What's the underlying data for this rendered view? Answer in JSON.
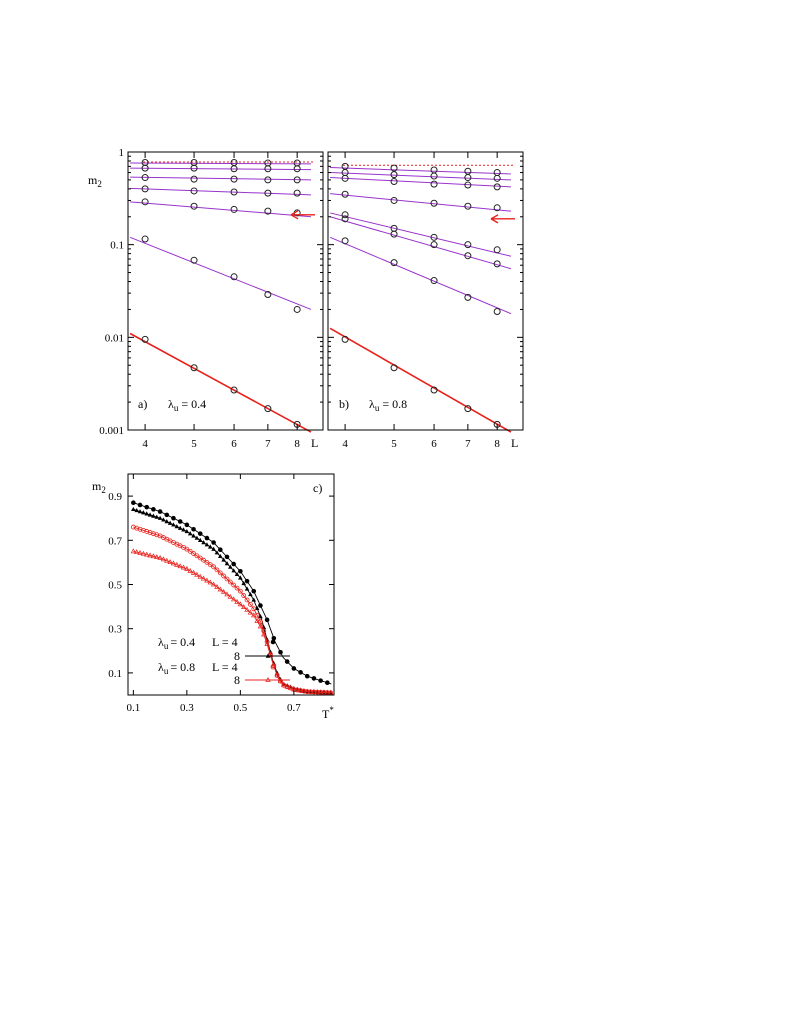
{
  "colors": {
    "axis": "#000000",
    "violet": "#9933cc",
    "red": "#e8211b",
    "black": "#000000"
  },
  "chart_data": [
    {
      "id": "a",
      "type": "scatter",
      "panel_label": "a)",
      "param_symbol": "λ",
      "param_sub": "u",
      "param_value": "= 0.4",
      "ylabel": "m",
      "ylabel_sub": "2",
      "xlabel": "L",
      "x_scale": "log",
      "y_scale": "log",
      "xlim": [
        3.7,
        9.0
      ],
      "ylim": [
        0.001,
        1
      ],
      "x_ticks": [
        "4",
        "5",
        "6",
        "7",
        "8"
      ],
      "y_ticks": [
        "1",
        "0.1",
        "0.01",
        "0.001"
      ],
      "marker": "open-circle",
      "x": [
        4,
        5,
        6,
        7,
        8
      ],
      "series": [
        {
          "values": [
            0.77,
            0.77,
            0.77,
            0.76,
            0.76
          ],
          "fit": [
            0.76,
            0.745
          ]
        },
        {
          "values": [
            0.67,
            0.67,
            0.66,
            0.66,
            0.66
          ],
          "fit": [
            0.67,
            0.645
          ]
        },
        {
          "values": [
            0.53,
            0.51,
            0.51,
            0.5,
            0.5
          ],
          "fit": [
            0.535,
            0.5
          ]
        },
        {
          "values": [
            0.4,
            0.38,
            0.37,
            0.36,
            0.36
          ],
          "fit": [
            0.405,
            0.345
          ]
        },
        {
          "values": [
            0.29,
            0.26,
            0.24,
            0.23,
            0.22
          ],
          "fit": [
            0.29,
            0.2
          ]
        },
        {
          "values": [
            0.115,
            0.068,
            0.045,
            0.029,
            0.02
          ],
          "fit": [
            0.12,
            0.02
          ]
        },
        {
          "values": [
            0.0095,
            0.0047,
            0.0027,
            0.0017,
            0.00115
          ],
          "fit": [
            0.011,
            0.00095
          ],
          "color": "red"
        }
      ],
      "dashed_level": 0.78,
      "arrow_y": 0.21
    },
    {
      "id": "b",
      "type": "scatter",
      "panel_label": "b)",
      "param_symbol": "λ",
      "param_sub": "u",
      "param_value": "= 0.8",
      "xlabel": "L",
      "x_scale": "log",
      "y_scale": "log",
      "xlim": [
        3.7,
        9.0
      ],
      "ylim": [
        0.001,
        1
      ],
      "x_ticks": [
        "4",
        "5",
        "6",
        "7",
        "8"
      ],
      "marker": "open-circle",
      "x": [
        4,
        5,
        6,
        7,
        8
      ],
      "series": [
        {
          "values": [
            0.7,
            0.67,
            0.64,
            0.62,
            0.6
          ],
          "fit": [
            0.68,
            0.58
          ]
        },
        {
          "values": [
            0.6,
            0.57,
            0.55,
            0.53,
            0.52
          ],
          "fit": [
            0.6,
            0.5
          ]
        },
        {
          "values": [
            0.52,
            0.48,
            0.45,
            0.44,
            0.42
          ],
          "fit": [
            0.53,
            0.42
          ]
        },
        {
          "values": [
            0.35,
            0.3,
            0.28,
            0.26,
            0.25
          ],
          "fit": [
            0.355,
            0.23
          ]
        },
        {
          "values": [
            0.21,
            0.15,
            0.12,
            0.1,
            0.088
          ],
          "fit": [
            0.22,
            0.075
          ]
        },
        {
          "values": [
            0.19,
            0.13,
            0.1,
            0.076,
            0.062
          ],
          "fit": [
            0.2,
            0.055
          ]
        },
        {
          "values": [
            0.11,
            0.064,
            0.041,
            0.027,
            0.019
          ],
          "fit": [
            0.12,
            0.018
          ]
        },
        {
          "values": [
            0.0095,
            0.0047,
            0.0027,
            0.0017,
            0.00115
          ],
          "fit": [
            0.0125,
            0.00095
          ],
          "color": "red"
        }
      ],
      "dashed_level": 0.72,
      "arrow_y": 0.19
    },
    {
      "id": "c",
      "type": "scatter",
      "panel_label": "c)",
      "ylabel": "m",
      "ylabel_sub": "2",
      "xlabel": "T",
      "xlabel_sup": "*",
      "xlim": [
        0.08,
        0.85
      ],
      "ylim": [
        0.0,
        1.0
      ],
      "x_ticks": [
        "0.1",
        "0.3",
        "0.5",
        "0.7"
      ],
      "y_ticks": [
        "0.9",
        "0.7",
        "0.5",
        "0.3",
        "0.1"
      ],
      "legend": {
        "lambda_label_1": "= 0.4",
        "lambda_label_2": "= 0.8",
        "lambda_symbol": "λ",
        "lambda_sub": "u",
        "l_label_1": "L = 4",
        "l_label_2": "L = 4",
        "eight_1": "8",
        "eight_2": "8"
      },
      "curves": [
        {
          "id": "c1",
          "color": "black",
          "marker": "filled-circle",
          "x0": 0.1,
          "x1": 0.84,
          "dx": 0.025,
          "points": [
            [
              0.1,
              0.87
            ],
            [
              0.2,
              0.83
            ],
            [
              0.3,
              0.77
            ],
            [
              0.4,
              0.69
            ],
            [
              0.5,
              0.56
            ],
            [
              0.55,
              0.47
            ],
            [
              0.6,
              0.34
            ],
            [
              0.63,
              0.24
            ],
            [
              0.66,
              0.17
            ],
            [
              0.7,
              0.12
            ],
            [
              0.75,
              0.085
            ],
            [
              0.8,
              0.065
            ],
            [
              0.84,
              0.05
            ]
          ]
        },
        {
          "id": "c2",
          "color": "black",
          "marker": "filled-triangle",
          "x0": 0.1,
          "x1": 0.84,
          "dx": 0.0125,
          "points": [
            [
              0.1,
              0.84
            ],
            [
              0.2,
              0.8
            ],
            [
              0.3,
              0.74
            ],
            [
              0.4,
              0.66
            ],
            [
              0.5,
              0.53
            ],
            [
              0.55,
              0.43
            ],
            [
              0.58,
              0.34
            ],
            [
              0.6,
              0.25
            ],
            [
              0.62,
              0.16
            ],
            [
              0.64,
              0.09
            ],
            [
              0.66,
              0.05
            ],
            [
              0.7,
              0.03
            ],
            [
              0.75,
              0.015
            ],
            [
              0.84,
              0.01
            ]
          ]
        },
        {
          "id": "c3",
          "color": "red",
          "marker": "open-circle",
          "x0": 0.1,
          "x1": 0.84,
          "dx": 0.0125,
          "points": [
            [
              0.1,
              0.76
            ],
            [
              0.2,
              0.72
            ],
            [
              0.3,
              0.66
            ],
            [
              0.4,
              0.58
            ],
            [
              0.5,
              0.47
            ],
            [
              0.55,
              0.39
            ],
            [
              0.58,
              0.32
            ],
            [
              0.6,
              0.24
            ],
            [
              0.62,
              0.15
            ],
            [
              0.64,
              0.08
            ],
            [
              0.66,
              0.045
            ],
            [
              0.7,
              0.025
            ],
            [
              0.75,
              0.015
            ],
            [
              0.84,
              0.01
            ]
          ]
        },
        {
          "id": "c4",
          "color": "red",
          "marker": "open-triangle",
          "x0": 0.1,
          "x1": 0.84,
          "dx": 0.0125,
          "points": [
            [
              0.1,
              0.65
            ],
            [
              0.2,
              0.62
            ],
            [
              0.3,
              0.57
            ],
            [
              0.4,
              0.5
            ],
            [
              0.5,
              0.41
            ],
            [
              0.55,
              0.36
            ],
            [
              0.58,
              0.3
            ],
            [
              0.6,
              0.23
            ],
            [
              0.62,
              0.15
            ],
            [
              0.64,
              0.08
            ],
            [
              0.66,
              0.045
            ],
            [
              0.7,
              0.025
            ],
            [
              0.75,
              0.015
            ],
            [
              0.84,
              0.01
            ]
          ]
        }
      ]
    }
  ]
}
